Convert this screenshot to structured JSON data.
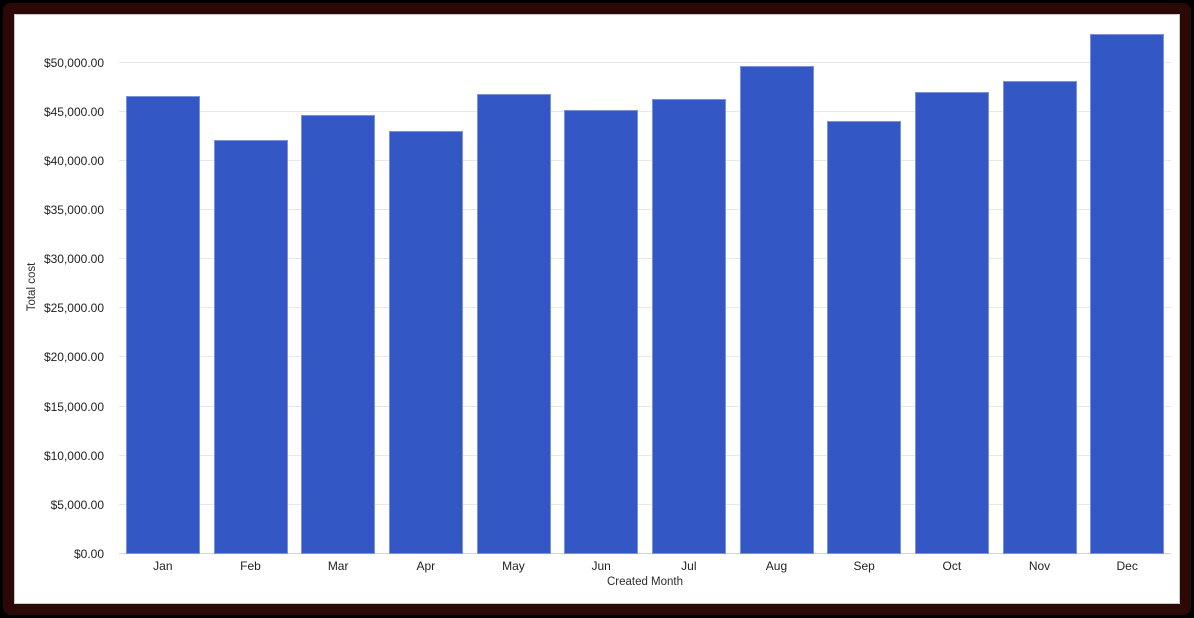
{
  "frame": {
    "outer_color": "#000000",
    "border_color": "#2c0907",
    "card_background": "#ffffff",
    "card_border_color": "#c9c9c9"
  },
  "chart_data": {
    "type": "bar",
    "title": "",
    "xlabel": "Created Month",
    "ylabel": "Total cost",
    "categories": [
      "Jan",
      "Feb",
      "Mar",
      "Apr",
      "May",
      "Jun",
      "Jul",
      "Aug",
      "Sep",
      "Oct",
      "Nov",
      "Dec"
    ],
    "values": [
      46600,
      42100,
      44700,
      43100,
      46800,
      45200,
      46300,
      49700,
      44100,
      47000,
      48100,
      52900
    ],
    "ylim": [
      0,
      50000
    ],
    "ytick_step": 5000,
    "ytick_labels": [
      "$0.00",
      "$5,000.00",
      "$10,000.00",
      "$15,000.00",
      "$20,000.00",
      "$25,000.00",
      "$30,000.00",
      "$35,000.00",
      "$40,000.00",
      "$45,000.00",
      "$50,000.00"
    ],
    "grid": true,
    "legend": "none",
    "bar_color": "#3358c5",
    "gridline_color": "#e8e8e8",
    "baseline_color": "#d6d6d6",
    "tick_label_color": "#1f1f1f",
    "axis_title_color": "#2d2d2d"
  }
}
